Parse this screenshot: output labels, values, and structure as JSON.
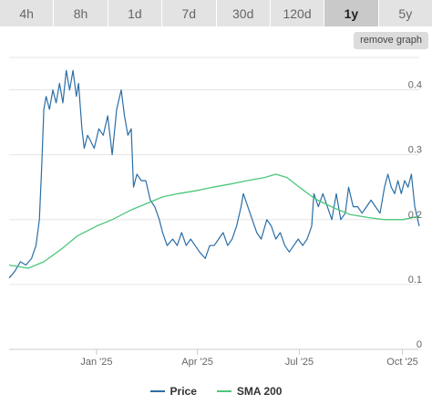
{
  "tabs": [
    {
      "label": "4h",
      "active": false
    },
    {
      "label": "8h",
      "active": false
    },
    {
      "label": "1d",
      "active": false
    },
    {
      "label": "7d",
      "active": false
    },
    {
      "label": "30d",
      "active": false
    },
    {
      "label": "120d",
      "active": false
    },
    {
      "label": "1y",
      "active": true
    },
    {
      "label": "5y",
      "active": false
    }
  ],
  "remove_graph_label": "remove graph",
  "colors": {
    "price": "#2b6ea6",
    "sma": "#4cc77a",
    "grid": "#e6e6e6",
    "axis_text": "#666666"
  },
  "chart_data": {
    "type": "line",
    "ylim": [
      0,
      0.45
    ],
    "yticks": [
      {
        "value": 0,
        "label": "0"
      },
      {
        "value": 0.1,
        "label": "0.1"
      },
      {
        "value": 0.2,
        "label": "0.2"
      },
      {
        "value": 0.3,
        "label": "0.3"
      },
      {
        "value": 0.4,
        "label": "0.4"
      }
    ],
    "xlim": [
      "2024-10-15",
      "2025-10-16"
    ],
    "xticks": [
      {
        "date": "2025-01-01",
        "label": "Jan '25"
      },
      {
        "date": "2025-04-01",
        "label": "Apr '25"
      },
      {
        "date": "2025-07-01",
        "label": "Jul '25"
      },
      {
        "date": "2025-10-01",
        "label": "Oct '25"
      }
    ],
    "grid": true,
    "legend_position": "bottom-center",
    "series": [
      {
        "name": "Price",
        "points": [
          [
            "2024-10-15",
            0.11
          ],
          [
            "2024-10-20",
            0.12
          ],
          [
            "2024-10-25",
            0.135
          ],
          [
            "2024-10-30",
            0.13
          ],
          [
            "2024-11-04",
            0.14
          ],
          [
            "2024-11-08",
            0.16
          ],
          [
            "2024-11-11",
            0.2
          ],
          [
            "2024-11-13",
            0.28
          ],
          [
            "2024-11-15",
            0.37
          ],
          [
            "2024-11-17",
            0.39
          ],
          [
            "2024-11-20",
            0.37
          ],
          [
            "2024-11-23",
            0.4
          ],
          [
            "2024-11-26",
            0.38
          ],
          [
            "2024-11-29",
            0.41
          ],
          [
            "2024-12-02",
            0.38
          ],
          [
            "2024-12-05",
            0.43
          ],
          [
            "2024-12-08",
            0.4
          ],
          [
            "2024-12-11",
            0.43
          ],
          [
            "2024-12-14",
            0.39
          ],
          [
            "2024-12-16",
            0.41
          ],
          [
            "2024-12-19",
            0.34
          ],
          [
            "2024-12-21",
            0.31
          ],
          [
            "2024-12-24",
            0.33
          ],
          [
            "2024-12-27",
            0.32
          ],
          [
            "2024-12-30",
            0.31
          ],
          [
            "2025-01-03",
            0.34
          ],
          [
            "2025-01-07",
            0.33
          ],
          [
            "2025-01-11",
            0.36
          ],
          [
            "2025-01-15",
            0.3
          ],
          [
            "2025-01-19",
            0.37
          ],
          [
            "2025-01-23",
            0.4
          ],
          [
            "2025-01-26",
            0.36
          ],
          [
            "2025-01-29",
            0.33
          ],
          [
            "2025-02-01",
            0.34
          ],
          [
            "2025-02-03",
            0.25
          ],
          [
            "2025-02-06",
            0.27
          ],
          [
            "2025-02-10",
            0.26
          ],
          [
            "2025-02-14",
            0.26
          ],
          [
            "2025-02-18",
            0.23
          ],
          [
            "2025-02-22",
            0.22
          ],
          [
            "2025-02-26",
            0.2
          ],
          [
            "2025-03-01",
            0.18
          ],
          [
            "2025-03-05",
            0.16
          ],
          [
            "2025-03-10",
            0.17
          ],
          [
            "2025-03-14",
            0.16
          ],
          [
            "2025-03-18",
            0.18
          ],
          [
            "2025-03-22",
            0.16
          ],
          [
            "2025-03-26",
            0.17
          ],
          [
            "2025-03-30",
            0.16
          ],
          [
            "2025-04-03",
            0.15
          ],
          [
            "2025-04-08",
            0.14
          ],
          [
            "2025-04-12",
            0.16
          ],
          [
            "2025-04-16",
            0.16
          ],
          [
            "2025-04-20",
            0.17
          ],
          [
            "2025-04-24",
            0.18
          ],
          [
            "2025-04-28",
            0.16
          ],
          [
            "2025-05-02",
            0.17
          ],
          [
            "2025-05-06",
            0.19
          ],
          [
            "2025-05-10",
            0.22
          ],
          [
            "2025-05-12",
            0.24
          ],
          [
            "2025-05-16",
            0.22
          ],
          [
            "2025-05-20",
            0.2
          ],
          [
            "2025-05-24",
            0.18
          ],
          [
            "2025-05-28",
            0.17
          ],
          [
            "2025-06-02",
            0.2
          ],
          [
            "2025-06-06",
            0.19
          ],
          [
            "2025-06-10",
            0.17
          ],
          [
            "2025-06-14",
            0.18
          ],
          [
            "2025-06-18",
            0.16
          ],
          [
            "2025-06-22",
            0.15
          ],
          [
            "2025-06-26",
            0.16
          ],
          [
            "2025-06-30",
            0.17
          ],
          [
            "2025-07-04",
            0.16
          ],
          [
            "2025-07-08",
            0.17
          ],
          [
            "2025-07-12",
            0.19
          ],
          [
            "2025-07-14",
            0.24
          ],
          [
            "2025-07-18",
            0.22
          ],
          [
            "2025-07-22",
            0.24
          ],
          [
            "2025-07-26",
            0.22
          ],
          [
            "2025-07-30",
            0.2
          ],
          [
            "2025-08-03",
            0.24
          ],
          [
            "2025-08-07",
            0.2
          ],
          [
            "2025-08-11",
            0.21
          ],
          [
            "2025-08-14",
            0.25
          ],
          [
            "2025-08-18",
            0.22
          ],
          [
            "2025-08-22",
            0.22
          ],
          [
            "2025-08-26",
            0.21
          ],
          [
            "2025-08-30",
            0.22
          ],
          [
            "2025-09-03",
            0.23
          ],
          [
            "2025-09-07",
            0.22
          ],
          [
            "2025-09-11",
            0.21
          ],
          [
            "2025-09-15",
            0.25
          ],
          [
            "2025-09-18",
            0.27
          ],
          [
            "2025-09-21",
            0.25
          ],
          [
            "2025-09-24",
            0.24
          ],
          [
            "2025-09-27",
            0.26
          ],
          [
            "2025-09-30",
            0.24
          ],
          [
            "2025-10-03",
            0.26
          ],
          [
            "2025-10-06",
            0.25
          ],
          [
            "2025-10-09",
            0.27
          ],
          [
            "2025-10-12",
            0.22
          ],
          [
            "2025-10-16",
            0.19
          ]
        ]
      },
      {
        "name": "SMA 200",
        "points": [
          [
            "2024-10-15",
            0.13
          ],
          [
            "2024-11-01",
            0.125
          ],
          [
            "2024-11-15",
            0.135
          ],
          [
            "2024-12-01",
            0.155
          ],
          [
            "2024-12-15",
            0.175
          ],
          [
            "2025-01-01",
            0.19
          ],
          [
            "2025-01-15",
            0.2
          ],
          [
            "2025-02-01",
            0.215
          ],
          [
            "2025-02-15",
            0.225
          ],
          [
            "2025-03-01",
            0.235
          ],
          [
            "2025-03-15",
            0.24
          ],
          [
            "2025-04-01",
            0.245
          ],
          [
            "2025-04-15",
            0.25
          ],
          [
            "2025-05-01",
            0.255
          ],
          [
            "2025-05-15",
            0.26
          ],
          [
            "2025-05-31",
            0.265
          ],
          [
            "2025-06-10",
            0.27
          ],
          [
            "2025-06-20",
            0.265
          ],
          [
            "2025-07-01",
            0.25
          ],
          [
            "2025-07-15",
            0.232
          ],
          [
            "2025-08-01",
            0.218
          ],
          [
            "2025-08-15",
            0.208
          ],
          [
            "2025-09-01",
            0.203
          ],
          [
            "2025-09-15",
            0.2
          ],
          [
            "2025-10-01",
            0.2
          ],
          [
            "2025-10-16",
            0.205
          ]
        ]
      }
    ]
  }
}
